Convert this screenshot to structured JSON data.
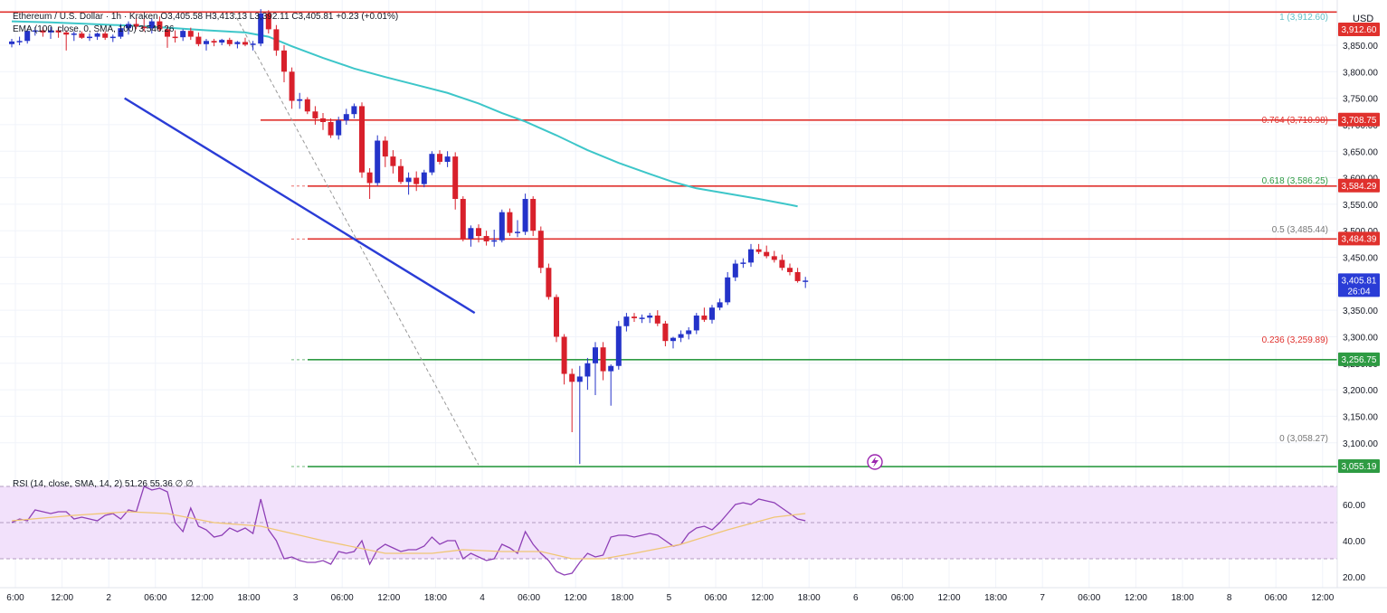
{
  "header": {
    "symbol_line": "Ethereum / U.S. Dollar · 1h · Kraken  O3,405.58  H3,413.13  L3,392.11  C3,405.81  +0.23 (+0.01%)",
    "ema_line": "EMA (100, close, 0, SMA, 100)  3,546.26",
    "rsi_line": "RSI (14, close, SMA, 14, 2)  51.26  55.36  ∅  ∅"
  },
  "axis": {
    "currency_label": "USD",
    "price_ticks": [
      "3,850.00",
      "3,800.00",
      "3,750.00",
      "3,700.00",
      "3,650.00",
      "3,600.00",
      "3,550.00",
      "3,500.00",
      "3,450.00",
      "3,400.00",
      "3,350.00",
      "3,300.00",
      "3,250.00",
      "3,200.00",
      "3,150.00",
      "3,100.00"
    ],
    "rsi_ticks": [
      "60.00",
      "40.00",
      "20.00"
    ],
    "time_ticks": [
      "6:00",
      "12:00",
      "2",
      "06:00",
      "12:00",
      "18:00",
      "3",
      "06:00",
      "12:00",
      "18:00",
      "4",
      "06:00",
      "12:00",
      "18:00",
      "5",
      "06:00",
      "12:00",
      "18:00",
      "6",
      "06:00",
      "12:00",
      "18:00",
      "7",
      "06:00",
      "12:00",
      "18:00",
      "8",
      "06:00",
      "12:00"
    ]
  },
  "price_tags": [
    {
      "label": "3,912.60",
      "color": "#e0312d"
    },
    {
      "label": "3,708.75",
      "color": "#e0312d"
    },
    {
      "label": "3,584.29",
      "color": "#e0312d"
    },
    {
      "label": "3,484.39",
      "color": "#e0312d"
    },
    {
      "label": "3,405.81",
      "sub": "26:04",
      "color": "#2a3cd6"
    },
    {
      "label": "3,256.75",
      "color": "#2e9b43"
    },
    {
      "label": "3,055.19",
      "color": "#2e9b43"
    }
  ],
  "fib_labels": [
    {
      "text": "1 (3,912.60)",
      "color": "#63c0c8"
    },
    {
      "text": "0.764 (3,710.98)",
      "color": "#e0312d"
    },
    {
      "text": "0.618 (3,586.25)",
      "color": "#2e9b43"
    },
    {
      "text": "0.5 (3,485.44)",
      "color": "#777777"
    },
    {
      "text": "0.236 (3,259.89)",
      "color": "#e0312d"
    },
    {
      "text": "0 (3,058.27)",
      "color": "#777777"
    }
  ],
  "chart_data": {
    "type": "candlestick",
    "ylim": [
      3045,
      3925
    ],
    "rsi_ylim": [
      15,
      75
    ],
    "hlines": [
      {
        "value": 3912.6,
        "color": "#e0312d"
      },
      {
        "value": 3708.75,
        "color": "#e0312d"
      },
      {
        "value": 3584.29,
        "color": "#e0312d"
      },
      {
        "value": 3484.39,
        "color": "#e0312d"
      },
      {
        "value": 3256.75,
        "color": "#2e9b43"
      },
      {
        "value": 3055.19,
        "color": "#2e9b43"
      }
    ],
    "trendline": {
      "from": [
        14.5,
        3750
      ],
      "to": [
        59.5,
        3345
      ],
      "color": "#2a3cd6"
    },
    "fib_diagonal": {
      "from": [
        28.5,
        3912.6
      ],
      "to": [
        60,
        3058.27
      ]
    },
    "candles_ohlc": [
      [
        3852,
        3862,
        3846,
        3857
      ],
      [
        3857,
        3866,
        3850,
        3858
      ],
      [
        3858,
        3880,
        3853,
        3877
      ],
      [
        3877,
        3884,
        3868,
        3878
      ],
      [
        3878,
        3884,
        3866,
        3874
      ],
      [
        3874,
        3884,
        3862,
        3878
      ],
      [
        3878,
        3885,
        3864,
        3874
      ],
      [
        3874,
        3878,
        3840,
        3870
      ],
      [
        3870,
        3876,
        3858,
        3872
      ],
      [
        3872,
        3876,
        3862,
        3864
      ],
      [
        3864,
        3872,
        3858,
        3866
      ],
      [
        3866,
        3874,
        3860,
        3872
      ],
      [
        3872,
        3876,
        3860,
        3864
      ],
      [
        3864,
        3870,
        3856,
        3866
      ],
      [
        3866,
        3890,
        3862,
        3882
      ],
      [
        3882,
        3895,
        3870,
        3890
      ],
      [
        3890,
        3902,
        3880,
        3885
      ],
      [
        3885,
        3900,
        3876,
        3882
      ],
      [
        3882,
        3900,
        3872,
        3895
      ],
      [
        3895,
        3904,
        3876,
        3880
      ],
      [
        3880,
        3885,
        3845,
        3866
      ],
      [
        3866,
        3878,
        3855,
        3865
      ],
      [
        3865,
        3880,
        3858,
        3877
      ],
      [
        3877,
        3883,
        3860,
        3866
      ],
      [
        3866,
        3874,
        3848,
        3852
      ],
      [
        3852,
        3862,
        3840,
        3858
      ],
      [
        3858,
        3862,
        3848,
        3855
      ],
      [
        3855,
        3862,
        3850,
        3860
      ],
      [
        3860,
        3864,
        3848,
        3852
      ],
      [
        3852,
        3858,
        3844,
        3856
      ],
      [
        3856,
        3864,
        3848,
        3851
      ],
      [
        3851,
        3858,
        3840,
        3853
      ],
      [
        3853,
        3918,
        3848,
        3910
      ],
      [
        3910,
        3916,
        3872,
        3880
      ],
      [
        3880,
        3888,
        3830,
        3840
      ],
      [
        3840,
        3850,
        3780,
        3800
      ],
      [
        3800,
        3808,
        3730,
        3745
      ],
      [
        3745,
        3760,
        3730,
        3748
      ],
      [
        3748,
        3752,
        3720,
        3725
      ],
      [
        3725,
        3735,
        3700,
        3712
      ],
      [
        3712,
        3722,
        3690,
        3705
      ],
      [
        3705,
        3712,
        3675,
        3680
      ],
      [
        3680,
        3715,
        3672,
        3708
      ],
      [
        3708,
        3730,
        3700,
        3720
      ],
      [
        3720,
        3740,
        3712,
        3735
      ],
      [
        3735,
        3742,
        3600,
        3610
      ],
      [
        3610,
        3618,
        3560,
        3590
      ],
      [
        3590,
        3680,
        3585,
        3670
      ],
      [
        3670,
        3678,
        3620,
        3640
      ],
      [
        3640,
        3652,
        3608,
        3622
      ],
      [
        3622,
        3635,
        3588,
        3592
      ],
      [
        3592,
        3610,
        3568,
        3600
      ],
      [
        3600,
        3612,
        3575,
        3588
      ],
      [
        3588,
        3615,
        3582,
        3610
      ],
      [
        3610,
        3650,
        3605,
        3645
      ],
      [
        3645,
        3652,
        3625,
        3630
      ],
      [
        3630,
        3650,
        3620,
        3640
      ],
      [
        3640,
        3648,
        3540,
        3560
      ],
      [
        3560,
        3565,
        3480,
        3485
      ],
      [
        3485,
        3510,
        3470,
        3505
      ],
      [
        3505,
        3512,
        3478,
        3490
      ],
      [
        3490,
        3500,
        3472,
        3480
      ],
      [
        3480,
        3502,
        3470,
        3482
      ],
      [
        3482,
        3540,
        3478,
        3535
      ],
      [
        3535,
        3542,
        3490,
        3496
      ],
      [
        3496,
        3520,
        3488,
        3498
      ],
      [
        3498,
        3570,
        3492,
        3560
      ],
      [
        3560,
        3565,
        3490,
        3500
      ],
      [
        3500,
        3508,
        3420,
        3430
      ],
      [
        3430,
        3438,
        3370,
        3375
      ],
      [
        3375,
        3380,
        3290,
        3300
      ],
      [
        3300,
        3305,
        3210,
        3230
      ],
      [
        3230,
        3240,
        3120,
        3215
      ],
      [
        3215,
        3245,
        3060,
        3225
      ],
      [
        3225,
        3260,
        3200,
        3250
      ],
      [
        3250,
        3290,
        3190,
        3280
      ],
      [
        3280,
        3290,
        3218,
        3235
      ],
      [
        3235,
        3248,
        3170,
        3245
      ],
      [
        3245,
        3330,
        3238,
        3320
      ],
      [
        3320,
        3345,
        3310,
        3338
      ],
      [
        3338,
        3345,
        3328,
        3335
      ],
      [
        3335,
        3342,
        3326,
        3336
      ],
      [
        3336,
        3345,
        3326,
        3340
      ],
      [
        3340,
        3350,
        3320,
        3325
      ],
      [
        3325,
        3330,
        3282,
        3292
      ],
      [
        3292,
        3300,
        3278,
        3298
      ],
      [
        3298,
        3312,
        3290,
        3305
      ],
      [
        3305,
        3318,
        3295,
        3312
      ],
      [
        3312,
        3345,
        3305,
        3340
      ],
      [
        3340,
        3355,
        3328,
        3332
      ],
      [
        3332,
        3360,
        3325,
        3355
      ],
      [
        3355,
        3372,
        3350,
        3365
      ],
      [
        3365,
        3422,
        3360,
        3412
      ],
      [
        3412,
        3445,
        3405,
        3438
      ],
      [
        3438,
        3448,
        3430,
        3440
      ],
      [
        3440,
        3475,
        3432,
        3465
      ],
      [
        3465,
        3475,
        3456,
        3460
      ],
      [
        3460,
        3472,
        3448,
        3452
      ],
      [
        3452,
        3462,
        3440,
        3445
      ],
      [
        3445,
        3455,
        3425,
        3430
      ],
      [
        3430,
        3438,
        3416,
        3422
      ],
      [
        3422,
        3430,
        3402,
        3405
      ],
      [
        3405,
        3413,
        3392,
        3406
      ]
    ],
    "ema100": [
      [
        0,
        3895
      ],
      [
        5,
        3893
      ],
      [
        10,
        3890
      ],
      [
        15,
        3887
      ],
      [
        20,
        3883
      ],
      [
        25,
        3878
      ],
      [
        30,
        3874
      ],
      [
        33,
        3866
      ],
      [
        36,
        3848
      ],
      [
        40,
        3826
      ],
      [
        44,
        3806
      ],
      [
        48,
        3790
      ],
      [
        52,
        3775
      ],
      [
        56,
        3760
      ],
      [
        60,
        3740
      ],
      [
        63,
        3722
      ],
      [
        66,
        3706
      ],
      [
        70,
        3680
      ],
      [
        74,
        3652
      ],
      [
        78,
        3628
      ],
      [
        82,
        3607
      ],
      [
        85,
        3592
      ],
      [
        88,
        3580
      ],
      [
        92,
        3570
      ],
      [
        96,
        3560
      ],
      [
        100,
        3549
      ],
      [
        101,
        3546
      ]
    ],
    "rsi": [
      50,
      52,
      51,
      57,
      56,
      55,
      56,
      56,
      52,
      53,
      52,
      51,
      54,
      55,
      52,
      57,
      56,
      70,
      68,
      69,
      67,
      50,
      45,
      58,
      48,
      46,
      42,
      43,
      47,
      45,
      47,
      44,
      63,
      46,
      40,
      30,
      31,
      29,
      28,
      28,
      29,
      27,
      34,
      33,
      34,
      40,
      27,
      35,
      38,
      36,
      34,
      35,
      35,
      37,
      42,
      38,
      40,
      40,
      30,
      33,
      31,
      29,
      30,
      38,
      36,
      33,
      45,
      38,
      33,
      29,
      23,
      21,
      22,
      28,
      33,
      31,
      32,
      42,
      43,
      43,
      42,
      43,
      44,
      43,
      40,
      37,
      38,
      44,
      47,
      48,
      46,
      50,
      55,
      60,
      61,
      60,
      63,
      62,
      61,
      58,
      55,
      52,
      51
    ],
    "rsi_sma": [
      [
        0,
        51
      ],
      [
        8,
        54
      ],
      [
        15,
        56
      ],
      [
        20,
        55
      ],
      [
        26,
        50
      ],
      [
        32,
        48
      ],
      [
        40,
        40
      ],
      [
        48,
        33
      ],
      [
        54,
        33
      ],
      [
        58,
        35
      ],
      [
        63,
        34
      ],
      [
        68,
        34
      ],
      [
        72,
        30
      ],
      [
        76,
        30
      ],
      [
        80,
        33
      ],
      [
        86,
        38
      ],
      [
        92,
        46
      ],
      [
        98,
        53
      ],
      [
        102,
        55
      ]
    ]
  }
}
